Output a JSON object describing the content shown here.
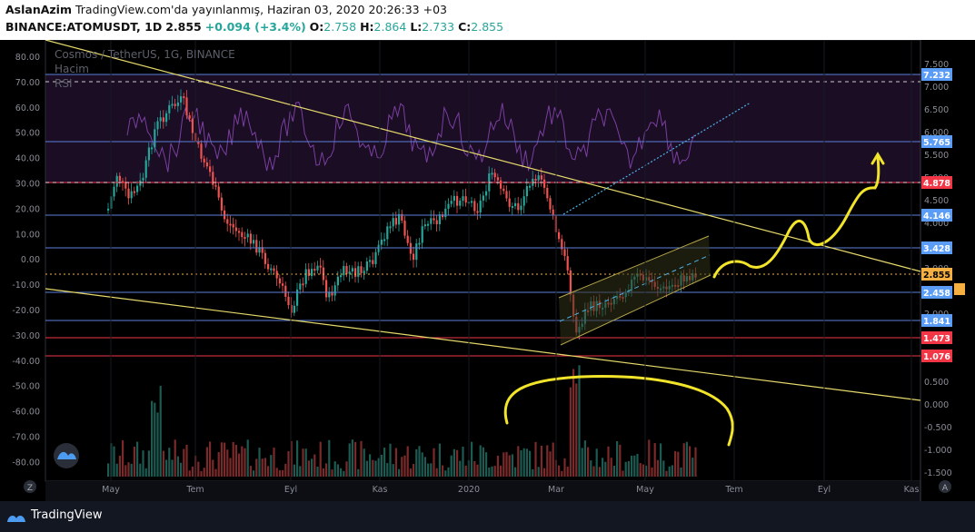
{
  "header": {
    "author": "AslanAzim",
    "published": "TradingView.com'da yayınlanmış, Haziran 03, 2020 20:26:33 +03",
    "symbol": "BINANCE:ATOMUSDT, 1D",
    "price": "2.855",
    "change": "+0.094 (+3.4%)",
    "o_label": "O:",
    "o_val": "2.758",
    "h_label": "H:",
    "h_val": "2.864",
    "l_label": "L:",
    "l_val": "2.733",
    "c_label": "C:",
    "c_val": "2.855"
  },
  "legend": {
    "title": "Cosmos / TetherUS, 1G, BINANCE",
    "volume": "Hacim",
    "rsi": "RSI"
  },
  "left_axis": [
    "80.00",
    "70.00",
    "60.00",
    "50.00",
    "40.00",
    "30.00",
    "20.00",
    "10.00",
    "0.00",
    "-10.00",
    "-20.00",
    "-30.00",
    "-40.00",
    "-50.00",
    "-60.00",
    "-70.00",
    "-80.00"
  ],
  "right_axis": [
    "7.500",
    "7.000",
    "6.500",
    "6.000",
    "5.500",
    "5.000",
    "4.500",
    "4.000",
    "3.500",
    "3.000",
    "2.500",
    "2.000",
    "1.500",
    "1.000",
    "0.500",
    "0.000",
    "-0.500",
    "-1.000",
    "-1.500"
  ],
  "price_labels": [
    {
      "text": "7.232",
      "color": "#5b9cf6"
    },
    {
      "text": "5.765",
      "color": "#5b9cf6"
    },
    {
      "text": "4.878",
      "color": "#f23645"
    },
    {
      "text": "4.146",
      "color": "#5b9cf6"
    },
    {
      "text": "3.428",
      "color": "#5b9cf6"
    },
    {
      "text": "2.855",
      "color": "#f5b041"
    },
    {
      "text": "2.458",
      "color": "#5b9cf6"
    },
    {
      "text": "1.841",
      "color": "#5b9cf6"
    },
    {
      "text": "1.473",
      "color": "#f23645"
    },
    {
      "text": "1.076",
      "color": "#f23645"
    }
  ],
  "time_axis": [
    "May",
    "Tem",
    "Eyl",
    "Kas",
    "2020",
    "Mar",
    "May",
    "Tem",
    "Eyl",
    "Kas"
  ],
  "corner_left": "Z",
  "corner_right": "A",
  "footer": {
    "brand": "TradingView"
  }
}
